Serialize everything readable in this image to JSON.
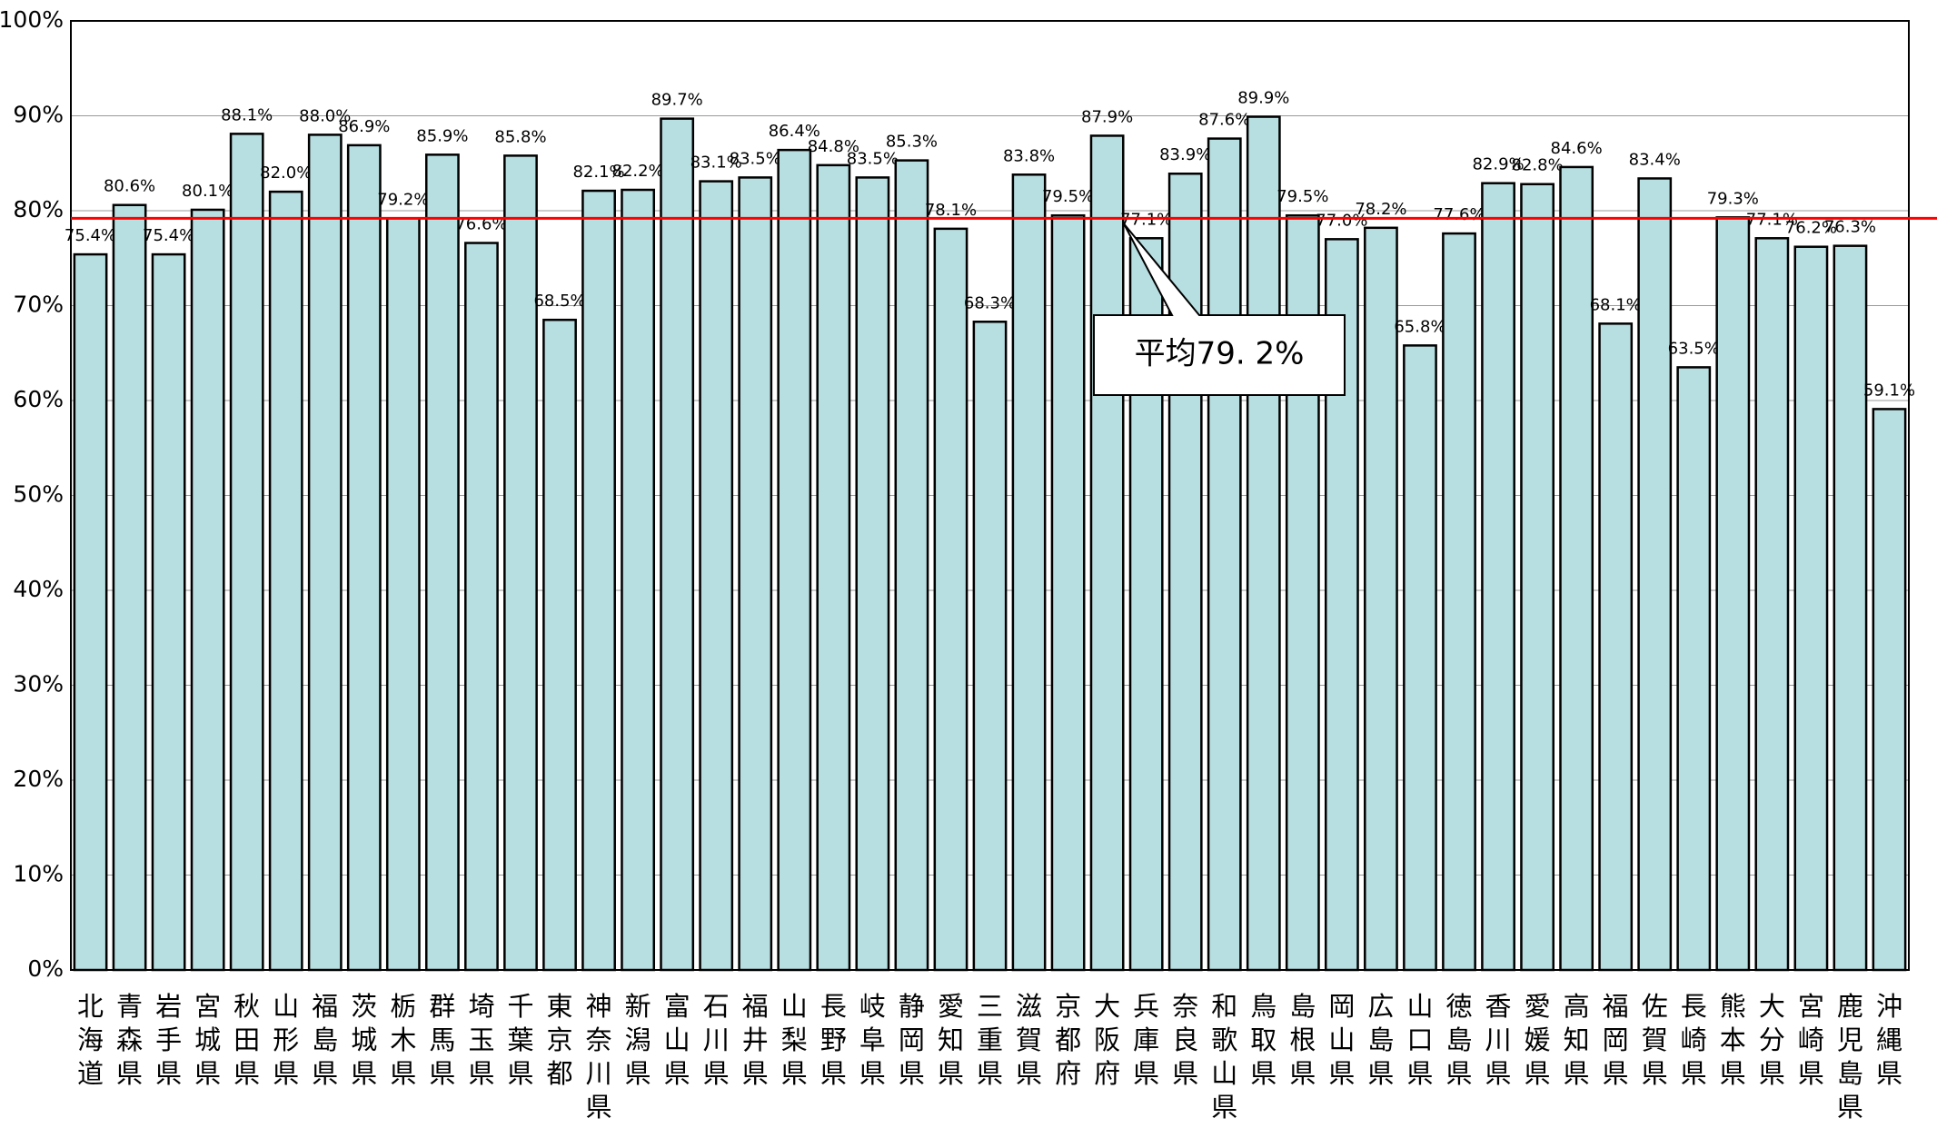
{
  "chart_data": {
    "type": "bar",
    "categories": [
      "北海道",
      "青森県",
      "岩手県",
      "宮城県",
      "秋田県",
      "山形県",
      "福島県",
      "茨城県",
      "栃木県",
      "群馬県",
      "埼玉県",
      "千葉県",
      "東京都",
      "神奈川県",
      "新潟県",
      "富山県",
      "石川県",
      "福井県",
      "山梨県",
      "長野県",
      "岐阜県",
      "静岡県",
      "愛知県",
      "三重県",
      "滋賀県",
      "京都府",
      "大阪府",
      "兵庫県",
      "奈良県",
      "和歌山県",
      "鳥取県",
      "島根県",
      "岡山県",
      "広島県",
      "山口県",
      "徳島県",
      "香川県",
      "愛媛県",
      "高知県",
      "福岡県",
      "佐賀県",
      "長崎県",
      "熊本県",
      "大分県",
      "宮崎県",
      "鹿児島県",
      "沖縄県"
    ],
    "values": [
      75.4,
      80.6,
      75.4,
      80.1,
      88.1,
      82.0,
      88.0,
      86.9,
      79.2,
      85.9,
      76.6,
      85.8,
      68.5,
      82.1,
      82.2,
      89.7,
      83.1,
      83.5,
      86.4,
      84.8,
      83.5,
      85.3,
      78.1,
      68.3,
      83.8,
      79.5,
      87.9,
      77.1,
      83.9,
      87.6,
      89.9,
      79.5,
      77.0,
      78.2,
      65.8,
      77.6,
      82.9,
      82.8,
      84.6,
      68.1,
      83.4,
      63.5,
      79.3,
      77.1,
      76.2,
      76.3,
      59.1
    ],
    "value_labels": [
      "75.4%",
      "80.6%",
      "75.4%",
      "80.1%",
      "88.1%",
      "82.0%",
      "88.0%",
      "86.9%",
      "79.2%",
      "85.9%",
      "76.6%",
      "85.8%",
      "68.5%",
      "82.1%",
      "82.2%",
      "89.7%",
      "83.1%",
      "83.5%",
      "86.4%",
      "84.8%",
      "83.5%",
      "85.3%",
      "78.1%",
      "68.3%",
      "83.8%",
      "79.5%",
      "87.9%",
      "77.1%",
      "83.9%",
      "87.6%",
      "89.9%",
      "79.5%",
      "77.0%",
      "78.2%",
      "65.8%",
      "77.6%",
      "82.9%",
      "82.8%",
      "84.6%",
      "68.1%",
      "83.4%",
      "63.5%",
      "79.3%",
      "77.1%",
      "76.2%",
      "76.3%",
      "59.1%"
    ],
    "color": "#b7dee0",
    "ylim": [
      0,
      100
    ],
    "yticks": [
      {
        "value": 0,
        "label": "0%"
      },
      {
        "value": 10,
        "label": "10%"
      },
      {
        "value": 20,
        "label": "20%"
      },
      {
        "value": 30,
        "label": "30%"
      },
      {
        "value": 40,
        "label": "40%"
      },
      {
        "value": 50,
        "label": "50%"
      },
      {
        "value": 60,
        "label": "60%"
      },
      {
        "value": 70,
        "label": "70%"
      },
      {
        "value": 80,
        "label": "80%"
      },
      {
        "value": 90,
        "label": "90%"
      },
      {
        "value": 100,
        "label": "100%"
      }
    ],
    "grid": true,
    "average": {
      "value": 79.2,
      "label": "平均79. 2%",
      "color": "#ff0000"
    }
  }
}
